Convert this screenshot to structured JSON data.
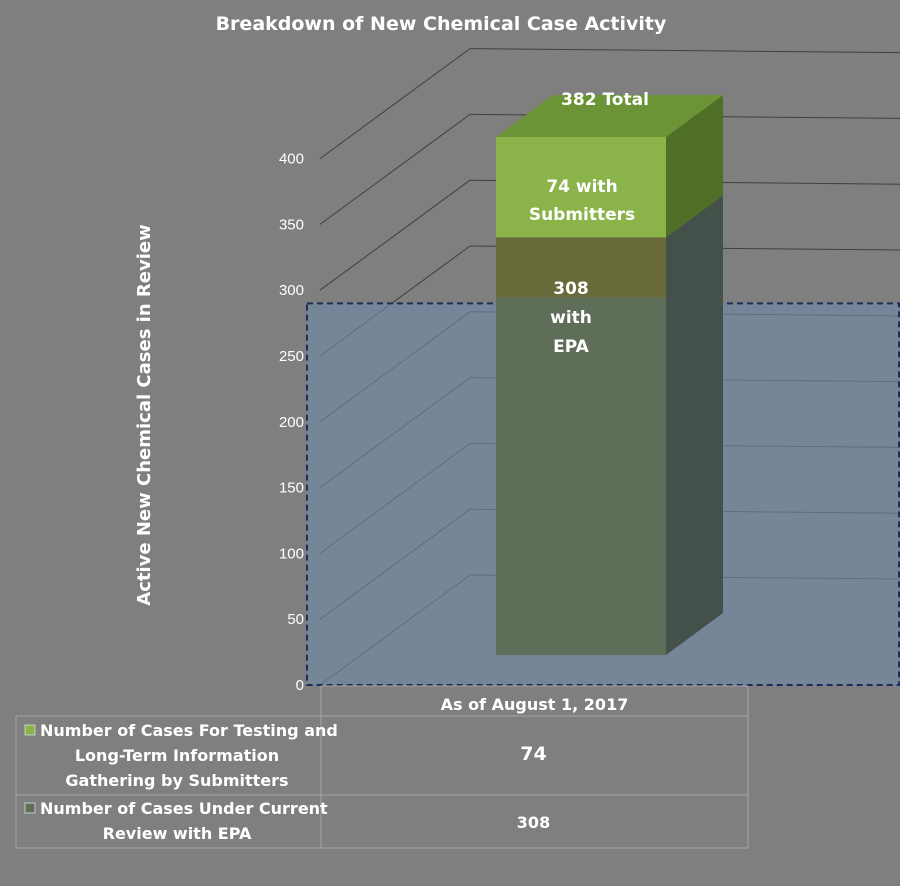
{
  "chart_data": {
    "type": "bar",
    "stacked": true,
    "title": "Breakdown of New Chemical Case Activity",
    "ylabel": "Active New Chemical Cases in Review",
    "ylim": [
      0,
      400
    ],
    "yticks": [
      0,
      50,
      100,
      150,
      200,
      250,
      300,
      350,
      400
    ],
    "categories": [
      "As of August 1, 2017"
    ],
    "series": [
      {
        "name": "Number of Cases Under Current Review with EPA",
        "values": [
          308
        ],
        "color": "#5e6e58"
      },
      {
        "name": "Number of Cases For Testing and Long-Term Information Gathering by Submitters",
        "values": [
          74
        ],
        "color": "#8ab44a"
      }
    ],
    "annotations": {
      "total": "382 Total",
      "top_segment": [
        "74 with",
        "Submitters"
      ],
      "bottom_segment": [
        "308",
        "with",
        "EPA"
      ]
    },
    "data_table": {
      "rows": [
        {
          "label_lines": [
            "Number of Cases For Testing and",
            "Long-Term Information",
            "Gathering by Submitters"
          ],
          "value": "74",
          "swatch": "#8ab44a"
        },
        {
          "label_lines": [
            "Number of Cases Under Current",
            "Review with EPA"
          ],
          "value": "308",
          "swatch": "#5e6e58"
        }
      ]
    },
    "grid": true
  }
}
